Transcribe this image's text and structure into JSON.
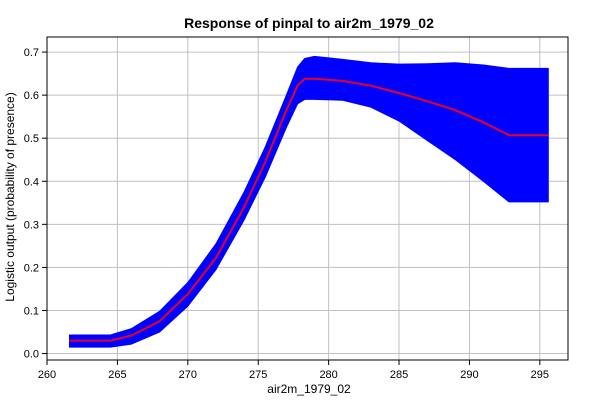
{
  "chart_data": {
    "type": "area",
    "title": "Response of pinpal to air2m_1979_02",
    "xlabel": "air2m_1979_02",
    "ylabel": "Logistic output (probability of presence)",
    "xlim": [
      260,
      297
    ],
    "ylim": [
      -0.015,
      0.735
    ],
    "x_ticks": [
      "260",
      "265",
      "270",
      "275",
      "280",
      "285",
      "290",
      "295"
    ],
    "y_ticks": [
      "0.0",
      "0.1",
      "0.2",
      "0.3",
      "0.4",
      "0.5",
      "0.6",
      "0.7"
    ],
    "grid": true,
    "series": [
      {
        "role": "band",
        "color": "#0000ff",
        "x": [
          261.6,
          264.5,
          266.0,
          268.0,
          270.0,
          272.0,
          274.0,
          275.5,
          277.0,
          277.8,
          278.3,
          279.0,
          281.0,
          283.0,
          285.0,
          287.0,
          289.0,
          291.0,
          292.8,
          295.6
        ],
        "upper": [
          0.043,
          0.043,
          0.058,
          0.098,
          0.165,
          0.255,
          0.375,
          0.48,
          0.6,
          0.665,
          0.685,
          0.69,
          0.683,
          0.675,
          0.672,
          0.673,
          0.675,
          0.67,
          0.662,
          0.662
        ],
        "lower": [
          0.015,
          0.015,
          0.022,
          0.05,
          0.11,
          0.195,
          0.31,
          0.41,
          0.525,
          0.58,
          0.59,
          0.59,
          0.588,
          0.572,
          0.54,
          0.495,
          0.45,
          0.4,
          0.352,
          0.352
        ]
      },
      {
        "role": "line",
        "color": "#e8002a",
        "x": [
          261.6,
          264.5,
          266.0,
          268.0,
          270.0,
          272.0,
          274.0,
          275.5,
          277.0,
          277.8,
          278.3,
          279.0,
          281.0,
          283.0,
          285.0,
          287.0,
          289.0,
          291.0,
          292.8,
          295.6
        ],
        "y": [
          0.03,
          0.03,
          0.042,
          0.075,
          0.138,
          0.222,
          0.34,
          0.445,
          0.565,
          0.622,
          0.638,
          0.638,
          0.633,
          0.622,
          0.605,
          0.586,
          0.565,
          0.537,
          0.507,
          0.507
        ]
      }
    ]
  }
}
